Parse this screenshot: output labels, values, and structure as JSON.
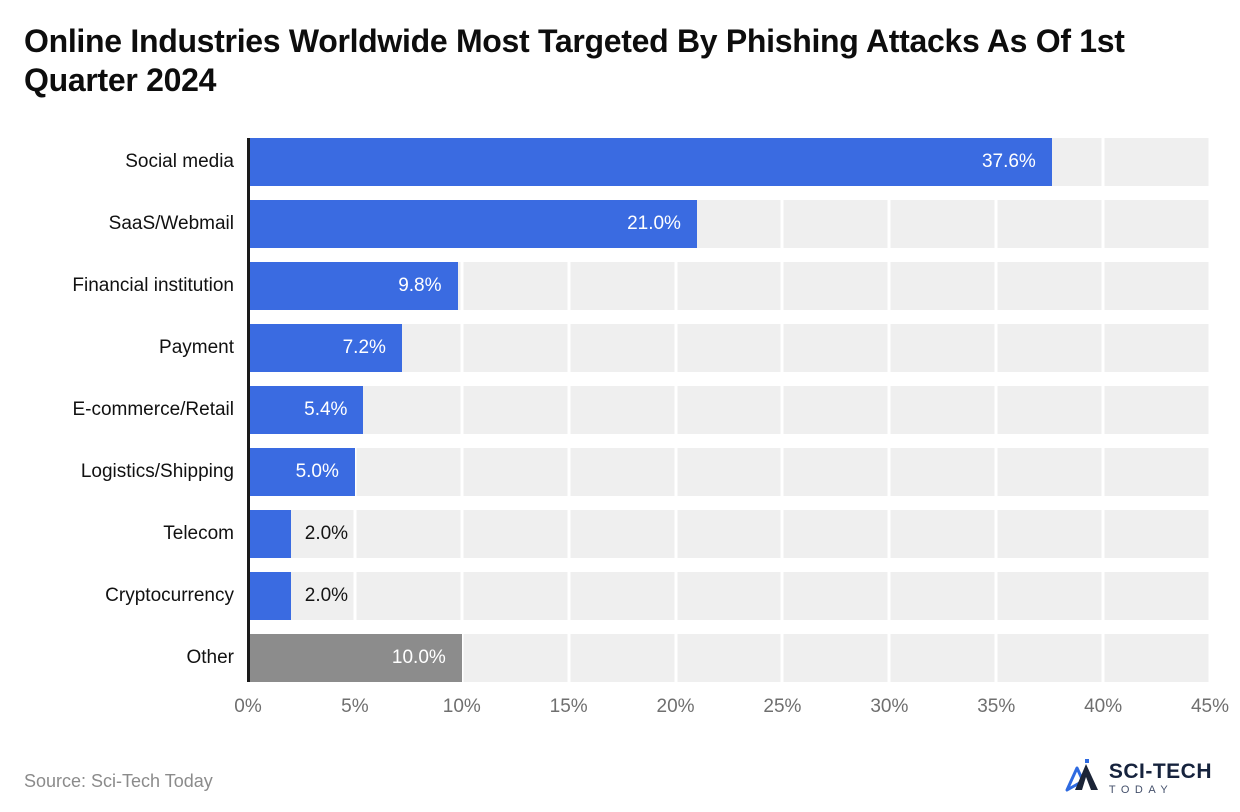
{
  "header": {
    "title": "Online Industries Worldwide Most Targeted By Phishing Attacks As Of 1st Quarter 2024"
  },
  "chart_data": {
    "type": "bar",
    "orientation": "horizontal",
    "title": "Online Industries Worldwide Most Targeted By Phishing Attacks As Of 1st Quarter 2024",
    "categories": [
      "Social media",
      "SaaS/Webmail",
      "Financial institution",
      "Payment",
      "E-commerce/Retail",
      "Logistics/Shipping",
      "Telecom",
      "Cryptocurrency",
      "Other"
    ],
    "values": [
      37.6,
      21.0,
      9.8,
      7.2,
      5.4,
      5.0,
      2.0,
      2.0,
      10.0
    ],
    "value_labels": [
      "37.6%",
      "21.0%",
      "9.8%",
      "7.2%",
      "5.4%",
      "5.0%",
      "2.0%",
      "2.0%",
      "10.0%"
    ],
    "bar_colors": [
      "#3A6BE1",
      "#3A6BE1",
      "#3A6BE1",
      "#3A6BE1",
      "#3A6BE1",
      "#3A6BE1",
      "#3A6BE1",
      "#3A6BE1",
      "#8C8C8C"
    ],
    "xlabel": "",
    "ylabel": "",
    "xlim": [
      0,
      45
    ],
    "x_ticks": [
      "0%",
      "5%",
      "10%",
      "15%",
      "20%",
      "25%",
      "30%",
      "35%",
      "40%",
      "45%"
    ],
    "grid": "vertical-white-lines-on-gray-tracks",
    "track_color": "#EFEFEF",
    "accent_color": "#3A6BE1",
    "other_color": "#8C8C8C",
    "legend": "none"
  },
  "footer": {
    "source": "Source: Sci-Tech Today",
    "logo": {
      "line1": "SCI-TECH",
      "line2": "TODAY"
    }
  }
}
